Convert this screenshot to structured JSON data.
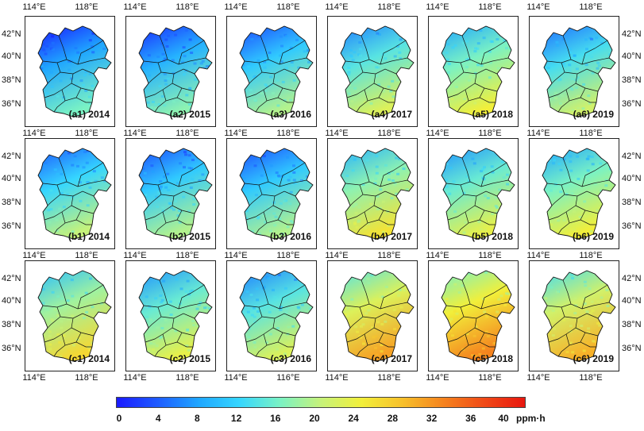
{
  "panels": [
    {
      "label": "(a1) 2014",
      "mean_ppmh": 8
    },
    {
      "label": "(a2) 2015",
      "mean_ppmh": 9
    },
    {
      "label": "(a3) 2016",
      "mean_ppmh": 11
    },
    {
      "label": "(a4) 2017",
      "mean_ppmh": 14
    },
    {
      "label": "(a5) 2018",
      "mean_ppmh": 16
    },
    {
      "label": "(a6) 2019",
      "mean_ppmh": 13
    },
    {
      "label": "(b1) 2014",
      "mean_ppmh": 12
    },
    {
      "label": "(b2) 2015",
      "mean_ppmh": 11
    },
    {
      "label": "(b3) 2016",
      "mean_ppmh": 11
    },
    {
      "label": "(b4) 2017",
      "mean_ppmh": 17
    },
    {
      "label": "(b5) 2018",
      "mean_ppmh": 15
    },
    {
      "label": "(b6) 2019",
      "mean_ppmh": 16
    },
    {
      "label": "(c1) 2014",
      "mean_ppmh": 18
    },
    {
      "label": "(c2) 2015",
      "mean_ppmh": 15
    },
    {
      "label": "(c3) 2016",
      "mean_ppmh": 14
    },
    {
      "label": "(c4) 2017",
      "mean_ppmh": 22
    },
    {
      "label": "(c5) 2018",
      "mean_ppmh": 24
    },
    {
      "label": "(c6) 2019",
      "mean_ppmh": 21
    }
  ],
  "axes": {
    "top_ticks": [
      "114°E",
      "118°E"
    ],
    "bottom_ticks_default": [
      "114°E",
      "118°E"
    ],
    "bottom_ticks_col3": [
      "114°E",
      "116°E"
    ],
    "lat_ticks": [
      "42°N",
      "40°N",
      "38°N",
      "36°N"
    ]
  },
  "colorbar": {
    "ticks": [
      "0",
      "4",
      "8",
      "12",
      "16",
      "20",
      "24",
      "28",
      "32",
      "36",
      "40"
    ],
    "unit": "ppm·h",
    "min": 0,
    "max": 40,
    "colors": [
      "#1a1aff",
      "#1e5bff",
      "#1fa6ff",
      "#35d6ff",
      "#7af2c4",
      "#c6f27a",
      "#f2ef3a",
      "#f7c02b",
      "#f5831e",
      "#f04a17",
      "#e8170f"
    ]
  }
}
